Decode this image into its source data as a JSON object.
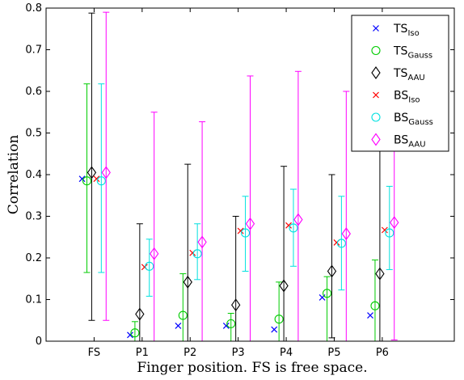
{
  "chart_data": {
    "type": "scatter",
    "xlabel": "Finger position. FS is free space.",
    "ylabel": "Correlation",
    "categories": [
      "FS",
      "P1",
      "P2",
      "P3",
      "P4",
      "P5",
      "P6"
    ],
    "ylim": [
      0,
      0.8
    ],
    "xlim": [
      0,
      8.5
    ],
    "yticks": [
      "0",
      "0.1",
      "0.2",
      "0.3",
      "0.4",
      "0.5",
      "0.6",
      "0.7",
      "0.8"
    ],
    "grid": false,
    "legend_position": "top-right",
    "series": [
      {
        "name": "TS",
        "sub": "Iso",
        "marker": "x",
        "color": "#0000ff",
        "offset": -0.25,
        "values": [
          0.39,
          0.015,
          0.037,
          0.037,
          0.028,
          0.105,
          0.062
        ],
        "lower": [
          null,
          null,
          null,
          null,
          null,
          null,
          null
        ],
        "upper": [
          null,
          null,
          null,
          null,
          null,
          null,
          null
        ]
      },
      {
        "name": "TS",
        "sub": "Gauss",
        "marker": "circle",
        "color": "#00cc00",
        "offset": -0.15,
        "values": [
          0.385,
          0.02,
          0.062,
          0.042,
          0.053,
          0.115,
          0.085
        ],
        "lower": [
          0.165,
          0.0,
          0.0,
          0.0,
          0.0,
          0.0,
          0.0
        ],
        "upper": [
          0.618,
          0.047,
          0.162,
          0.067,
          0.142,
          0.155,
          0.195
        ]
      },
      {
        "name": "TS",
        "sub": "AAU",
        "marker": "diamond",
        "color": "#000000",
        "offset": -0.05,
        "values": [
          0.405,
          0.065,
          0.142,
          0.087,
          0.133,
          0.168,
          0.162
        ],
        "lower": [
          0.05,
          0.0,
          0.0,
          0.0,
          0.0,
          0.008,
          0.0
        ],
        "upper": [
          0.788,
          0.282,
          0.425,
          0.3,
          0.42,
          0.4,
          0.477
        ]
      },
      {
        "name": "BS",
        "sub": "Iso",
        "marker": "x",
        "color": "#ff0000",
        "offset": 0.05,
        "values": [
          0.39,
          0.178,
          0.212,
          0.265,
          0.278,
          0.237,
          0.267
        ],
        "lower": [
          null,
          null,
          null,
          null,
          null,
          null,
          null
        ],
        "upper": [
          null,
          null,
          null,
          null,
          null,
          null,
          null
        ]
      },
      {
        "name": "BS",
        "sub": "Gauss",
        "marker": "circle",
        "color": "#00e0e0",
        "offset": 0.15,
        "values": [
          0.385,
          0.18,
          0.21,
          0.26,
          0.272,
          0.235,
          0.26
        ],
        "lower": [
          0.165,
          0.108,
          0.148,
          0.168,
          0.18,
          0.123,
          0.172
        ],
        "upper": [
          0.618,
          0.245,
          0.282,
          0.348,
          0.365,
          0.348,
          0.372
        ]
      },
      {
        "name": "BS",
        "sub": "AAU",
        "marker": "diamond",
        "color": "#ff00ff",
        "offset": 0.25,
        "values": [
          0.405,
          0.21,
          0.238,
          0.282,
          0.292,
          0.258,
          0.285
        ],
        "lower": [
          0.05,
          0.0,
          0.0,
          0.0,
          0.0,
          0.0,
          0.003
        ],
        "upper": [
          0.79,
          0.55,
          0.527,
          0.637,
          0.648,
          0.6,
          0.622
        ]
      }
    ]
  }
}
